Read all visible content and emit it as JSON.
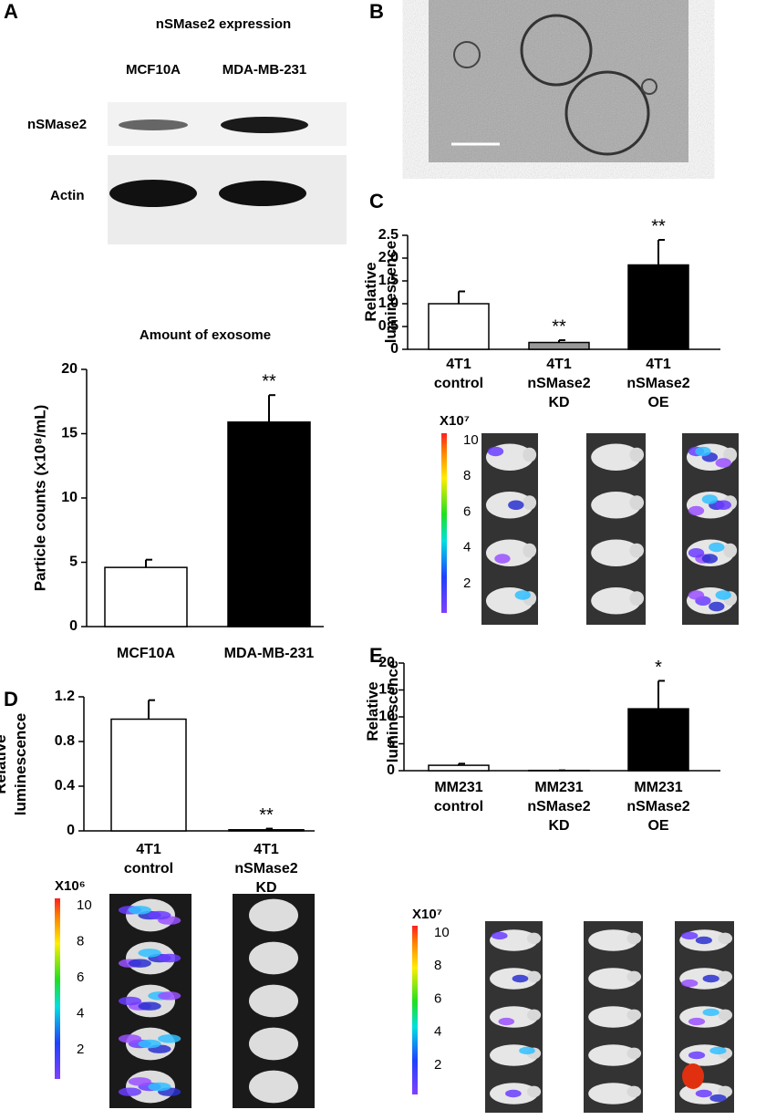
{
  "panel_labels": [
    "A",
    "B",
    "C",
    "D",
    "E"
  ],
  "blot": {
    "title": "nSMase2 expression",
    "lanes": [
      "MCF10A",
      "MDA-MB-231"
    ],
    "rows": [
      "nSMase2",
      "Actin"
    ]
  },
  "chart_data": [
    {
      "type": "bar",
      "title": "Amount of exosome",
      "ylabel": "Particle counts (x10⁸/mL)",
      "categories": [
        "MCF10A",
        "MDA-MB-231"
      ],
      "values": [
        4.6,
        15.9
      ],
      "errors": [
        0.6,
        2.1
      ],
      "colors": [
        "#ffffff",
        "#000000"
      ],
      "significance": [
        null,
        "**"
      ],
      "ylim": [
        0,
        20
      ],
      "yticks": [
        0,
        5,
        10,
        15,
        20
      ]
    },
    {
      "type": "bar",
      "ylabel": "Relative luminescence",
      "categories": [
        "4T1 control",
        "4T1 nSMase2 KD",
        "4T1 nSMase2 OE"
      ],
      "values": [
        1.0,
        0.15,
        1.85
      ],
      "errors": [
        0.27,
        0.05,
        0.55
      ],
      "colors": [
        "#ffffff",
        "#999999",
        "#000000"
      ],
      "significance": [
        null,
        "**",
        "**"
      ],
      "ylim": [
        0,
        2.5
      ],
      "yticks": [
        0,
        0.5,
        {
          "value": 1,
          "label": "1.0"
        },
        1.5,
        {
          "value": 2,
          "label": "2.0"
        },
        2.5
      ]
    },
    {
      "type": "bar",
      "ylabel": "Relative luminescence",
      "categories": [
        "4T1 control",
        "4T1 nSMase2 KD"
      ],
      "values": [
        1.0,
        0.01
      ],
      "errors": [
        0.17,
        0.01
      ],
      "colors": [
        "#ffffff",
        "#000000"
      ],
      "significance": [
        null,
        "**"
      ],
      "ylim": [
        0,
        1.2
      ],
      "yticks": [
        0,
        0.4,
        0.8,
        1.2
      ]
    },
    {
      "type": "bar",
      "ylabel": "Relative luminescence",
      "categories": [
        "MM231 control",
        "MM231 nSMase2 KD",
        "MM231 nSMase2 OE"
      ],
      "values": [
        1.0,
        0.05,
        11.5
      ],
      "errors": [
        0.3,
        0.02,
        5.2
      ],
      "colors": [
        "#ffffff",
        "#999999",
        "#000000"
      ],
      "significance": [
        null,
        null,
        "*"
      ],
      "ylim": [
        0,
        20
      ],
      "yticks": [
        0,
        5,
        10,
        15,
        20
      ]
    }
  ],
  "colorbars": [
    {
      "unit": "X10⁷",
      "ticks": [
        10,
        8,
        6,
        4,
        2
      ]
    },
    {
      "unit": "X10⁶",
      "ticks": [
        10,
        8,
        6,
        4,
        2
      ]
    },
    {
      "unit": "X10⁷",
      "ticks": [
        10,
        8,
        6,
        4,
        2
      ]
    }
  ]
}
